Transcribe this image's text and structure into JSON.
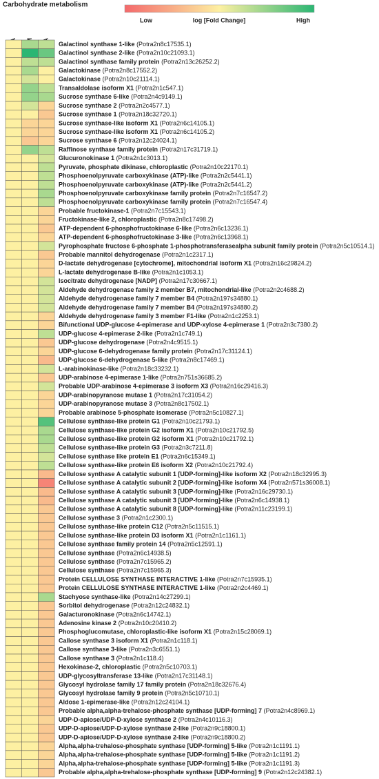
{
  "chart_data": {
    "type": "heatmap",
    "title": "Carbohydrate metabolism",
    "colorbar_title": "log [Fold Change]",
    "colorbar_low": "Low",
    "colorbar_high": "High",
    "colorscale": [
      "#f4696b",
      "#fdf0a2",
      "#2bb673"
    ],
    "zlim": [
      -1,
      1
    ],
    "x": [
      "C vs. A",
      "C vs. M",
      "M vs. A"
    ],
    "y": [
      "Galactinol synthase 1-like",
      "Galactinol synthase 2-like",
      "Galactinol synthase family protein",
      "Galactokinase",
      "Galactokinase",
      "Transaldolase isoform X1",
      "Sucrose synthase 6-like",
      "Sucrose synthase 2",
      "Sucrose synthase 1",
      "Sucrose synthase-like isoform X1",
      "Sucrose synthase-like isoform X1",
      "Sucrose synthase 6",
      "Raffinose synthase family protein",
      "Glucuronokinase 1",
      "Pyruvate, phosphate dikinase, chloroplastic",
      "Phosphoenolpyruvate carboxykinase (ATP)-like",
      "Phosphoenolpyruvate carboxykinase (ATP)-like",
      "Phosphoenolpyruvate carboxykinase family protein",
      "Phosphoenolpyruvate carboxykinase family protein",
      "Probable fructokinase-1",
      "Fructokinase-like 2, chloroplastic",
      "ATP-dependent 6-phosphofructokinase 6-like",
      "ATP-dependent 6-phosphofructokinase 3-like",
      "Pyrophosphate fructose 6-phosphate 1-phosphotransferasealpha subunit family protein",
      "Probable mannitol dehydrogenase",
      "D-lactate dehydrogenase [cytochrome], mitochondrial isoform X1",
      "L-lactate dehydrogenase B-like",
      "Isocitrate dehydrogenase [NADP]",
      "Aldehyde dehydrogenase family 2 member B7, mitochondrial-like",
      "Aldehyde dehydrogenase family 7 member B4",
      "Aldehyde dehydrogenase family 7 member B4",
      "Aldehyde dehydrogenase family 3 member F1-like",
      "Bifunctional UDP-glucose 4-epimerase and UDP-xylose 4-epimerase 1",
      "UDP-glucose 4-epimerase 2-like",
      "UDP-glucose dehydrogenase",
      "UDP-glucose 6-dehydrogenase family protein",
      "UDP-glucose 6-dehydrogenase 5-like",
      "L-arabinokinase-like",
      "UDP-arabinose 4-epimerase 1-like",
      "Probable UDP-arabinose 4-epimerase 3 isoform X3",
      "UDP-arabinopyranose mutase 1",
      "UDP-arabinopyranose mutase 3",
      "Probable arabinose 5-phosphate isomerase",
      "Cellulose synthase-like protein G1",
      "Cellulose synthase-like protein G2 isoform X1",
      "Cellulose synthase-like protein G2 isoform X1",
      "Cellulose synthase-like protein G3",
      "Cellulose synthase like protein E1",
      "Cellulose synthase-like protein E6 isoform X2",
      "Cellulose synthase A catalytic subunit 1 [UDP-forming]-like isoform X2",
      "Cellulose synthase A catalytic subunit 2 [UDP-forming]-like isoform X4",
      "Cellulose synthase A catalytic subunit 3 [UDP-forming]-like",
      "Cellulose synthase A catalytic subunit 3 [UDP-forming]-like",
      "Cellulose synthase A catalytic subunit 8 [UDP-forming]-like",
      "Cellulose synthase 3",
      "Cellulose synthase-like protein C12",
      "Cellulose synthase-like protein D3 isoform X1",
      "Cellulose synthase family protein 14",
      "Cellulose synthase",
      "Cellulose synthase",
      "Cellulose synthase",
      "Protein CELLULOSE SYNTHASE INTERACTIVE 1-like",
      "Protein CELLULOSE SYNTHASE INTERACTIVE 1-like",
      "Stachyose synthase-like",
      "Sorbitol dehydrogenase",
      "Galacturonokinase",
      "Adenosine kinase 2",
      "Phosphoglucomutase, chloroplastic-like isoform X1",
      "Callose synthase 3 isoform X1",
      "Callose synthase 3-like",
      "Callose synthase 3",
      "Hexokinase-2, chloroplastic",
      "UDP-glycosyltransferase 13-like",
      "Glycosyl hydrolase family 17 family protein",
      "Glycosyl hydrolase family 9 protein",
      "Aldose 1-epimerase-like",
      "Probable alpha,alpha-trehalose-phosphate synthase [UDP-forming] 7",
      "UDP-D-apiose/UDP-D-xylose synthase 2",
      "UDP-D-apiose/UDP-D-xylose synthase 2-like",
      "UDP-D-apiose/UDP-D-xylose synthase 2-like",
      "Alpha,alpha-trehalose-phosphate synthase [UDP-forming] 5-like",
      "Alpha,alpha-trehalose-phosphate synthase [UDP-forming] 5-like",
      "Alpha,alpha-trehalose-phosphate synthase [UDP-forming] 5-like",
      "Probable alpha,alpha-trehalose-phosphate synthase [UDP-forming] 9"
    ],
    "ids": [
      "(Potra2n8c17535.1)",
      "(Potra2n10c21093.1)",
      "(Potra2n13c26252.2)",
      "(Potra2n8c17552.2)",
      "(Potra2n10c21114.1)",
      "(Potra2n1c547.1)",
      "(Potra2n4c9149.1)",
      "(Potra2n2c4577.1)",
      "(Potra2n18c32720.1)",
      "(Potra2n6c14105.1)",
      "(Potra2n6c14105.2)",
      "(Potra2n12c24024.1)",
      "(Potra2n17c31719.1)",
      "(Potra2n1c3013.1)",
      "(Potra2n10c22170.1)",
      "(Potra2n2c5441.1)",
      "(Potra2n2c5441.2)",
      "(Potra2n7c16547.2)",
      "(Potra2n7c16547.4)",
      "(Potra2n7c15543.1)",
      "(Potra2n8c17498.2)",
      "(Potra2n6c13236.1)",
      "(Potra2n6c13968.1)",
      "(Potra2n5c10514.1)",
      "(Potra2n1c2317.1)",
      "(Potra2n16c29824.2)",
      "(Potra2n1c1053.1)",
      "(Potra2n17c30667.1)",
      "(Potra2n2c4688.2)",
      "(Potra2n197s34880.1)",
      "(Potra2n197s34880.2)",
      "(Potra2n1c2253.1)",
      "(Potra2n3c7380.2)",
      "(Potra2n1c749.1)",
      "(Potra2n4c9515.1)",
      "(Potra2n17c31124.1)",
      "(Potra2n8c17469.1)",
      "(Potra2n18c33232.1)",
      "(Potra2n751s36685.2)",
      "(Potra2n16c29416.3)",
      "(Potra2n17c31054.2)",
      "(Potra2n8c17502.1)",
      "(Potra2n5c10827.1)",
      "(Potra2n10c21793.1)",
      "(Potra2n10c21792.5)",
      "(Potra2n10c21792.1)",
      "(Potra2n3c7211.8)",
      "(Potra2n6c15349.1)",
      "(Potra2n10c21792.4)",
      "(Potra2n18c32995.3)",
      "(Potra2n571s36008.1)",
      "(Potra2n16c29730.1)",
      "(Potra2n6c14938.1)",
      "(Potra2n11c23199.1)",
      "(Potra2n1c2300.1)",
      "(Potra2n5c11515.1)",
      "(Potra2n1c1161.1)",
      "(Potra2n5c12591.1)",
      "(Potra2n6c14938.5)",
      "(Potra2n7c15965.2)",
      "(Potra2n7c15965.3)",
      "(Potra2n7c15935.1)",
      "(Potra2n2c4469.1)",
      "(Potra2n14c27299.1)",
      "(Potra2n12c24832.1)",
      "(Potra2n6c14742.1)",
      "(Potra2n10c20410.2)",
      "(Potra2n15c28069.1)",
      "(Potra2n1c118.1)",
      "(Potra2n3c6551.1)",
      "(Potra2n1c118.4)",
      "(Potra2n5c10703.1)",
      "(Potra2n17c31148.1)",
      "(Potra2n18c32676.4)",
      "(Potra2n5c10710.1)",
      "(Potra2n12c24104.1)",
      "(Potra2n4c8969.1)",
      "(Potra2n4c10116.3)",
      "(Potra2n9c18800.1)",
      "(Potra2n9c18800.2)",
      "(Potra2n1c1191.1)",
      "(Potra2n1c1191.2)",
      "(Potra2n1c1191.3)",
      "(Potra2n12c24382.1)"
    ],
    "values": [
      [
        0,
        0.4,
        0.3
      ],
      [
        0,
        1,
        0.7
      ],
      [
        0,
        0.3,
        0.3
      ],
      [
        0,
        0.4,
        0
      ],
      [
        0,
        0.2,
        0
      ],
      [
        0,
        0.5,
        0.3
      ],
      [
        0,
        0.5,
        0.4
      ],
      [
        0,
        0.2,
        -0.2
      ],
      [
        0,
        0,
        -0.3
      ],
      [
        0,
        -0.2,
        -0.2
      ],
      [
        0,
        -0.2,
        -0.2
      ],
      [
        0,
        -0.3,
        -0.2
      ],
      [
        0,
        0.5,
        0.3
      ],
      [
        0,
        0,
        0.2
      ],
      [
        0,
        0,
        0.3
      ],
      [
        0,
        0,
        0.3
      ],
      [
        0,
        0,
        0.3
      ],
      [
        0,
        0,
        0.4
      ],
      [
        0,
        0,
        0.3
      ],
      [
        0,
        0,
        -0.2
      ],
      [
        0,
        0,
        -0.2
      ],
      [
        0,
        0,
        -0.3
      ],
      [
        0,
        0,
        -0.2
      ],
      [
        0,
        0,
        0.2
      ],
      [
        0,
        0,
        -0.3
      ],
      [
        0,
        0,
        -0.2
      ],
      [
        0,
        0,
        -0.2
      ],
      [
        0,
        0,
        0.2
      ],
      [
        0,
        0,
        0.2
      ],
      [
        0,
        0,
        0.2
      ],
      [
        0,
        0,
        0.2
      ],
      [
        0,
        0,
        -0.2
      ],
      [
        0,
        0,
        -0.2
      ],
      [
        0,
        0,
        0.3
      ],
      [
        0,
        0,
        -0.3
      ],
      [
        0,
        0,
        -0.2
      ],
      [
        0,
        0,
        -0.4
      ],
      [
        0,
        0,
        0.2
      ],
      [
        0,
        0,
        -0.3
      ],
      [
        0,
        0,
        0.2
      ],
      [
        0,
        0,
        -0.2
      ],
      [
        0,
        0,
        -0.2
      ],
      [
        0,
        0,
        -0.2
      ],
      [
        0,
        0,
        0.8
      ],
      [
        0,
        0,
        0.4
      ],
      [
        0,
        0,
        0.4
      ],
      [
        0,
        0,
        0.3
      ],
      [
        0,
        0,
        0.2
      ],
      [
        0,
        0,
        0.3
      ],
      [
        0,
        0,
        -0.4
      ],
      [
        0,
        0,
        -0.8
      ],
      [
        0,
        0,
        -0.4
      ],
      [
        0,
        0,
        -0.4
      ],
      [
        0,
        0,
        -0.3
      ],
      [
        0,
        0,
        -0.3
      ],
      [
        0,
        0,
        -0.3
      ],
      [
        0,
        0,
        -0.3
      ],
      [
        0,
        0,
        -0.3
      ],
      [
        0,
        0,
        -0.3
      ],
      [
        0,
        0,
        -0.3
      ],
      [
        0,
        0,
        -0.3
      ],
      [
        0,
        0,
        -0.3
      ],
      [
        0,
        0,
        -0.3
      ],
      [
        0,
        0,
        0.4
      ],
      [
        0,
        0,
        -0.3
      ],
      [
        0,
        0,
        -0.3
      ],
      [
        0,
        0,
        -0.3
      ],
      [
        0,
        0,
        -0.3
      ],
      [
        0,
        0,
        -0.3
      ],
      [
        0,
        0,
        -0.3
      ],
      [
        0,
        0,
        -0.3
      ],
      [
        0,
        0,
        -0.3
      ],
      [
        0,
        0,
        -0.3
      ],
      [
        0,
        0,
        -0.3
      ],
      [
        0,
        0,
        -0.3
      ],
      [
        0,
        0,
        -0.3
      ],
      [
        0,
        0,
        -0.3
      ],
      [
        0,
        0,
        -0.2
      ],
      [
        0,
        0,
        -0.3
      ],
      [
        0,
        0,
        -0.3
      ],
      [
        0,
        0,
        -0.2
      ],
      [
        0,
        0,
        -0.2
      ],
      [
        0,
        0,
        -0.2
      ],
      [
        0,
        0,
        -0.3
      ]
    ]
  }
}
